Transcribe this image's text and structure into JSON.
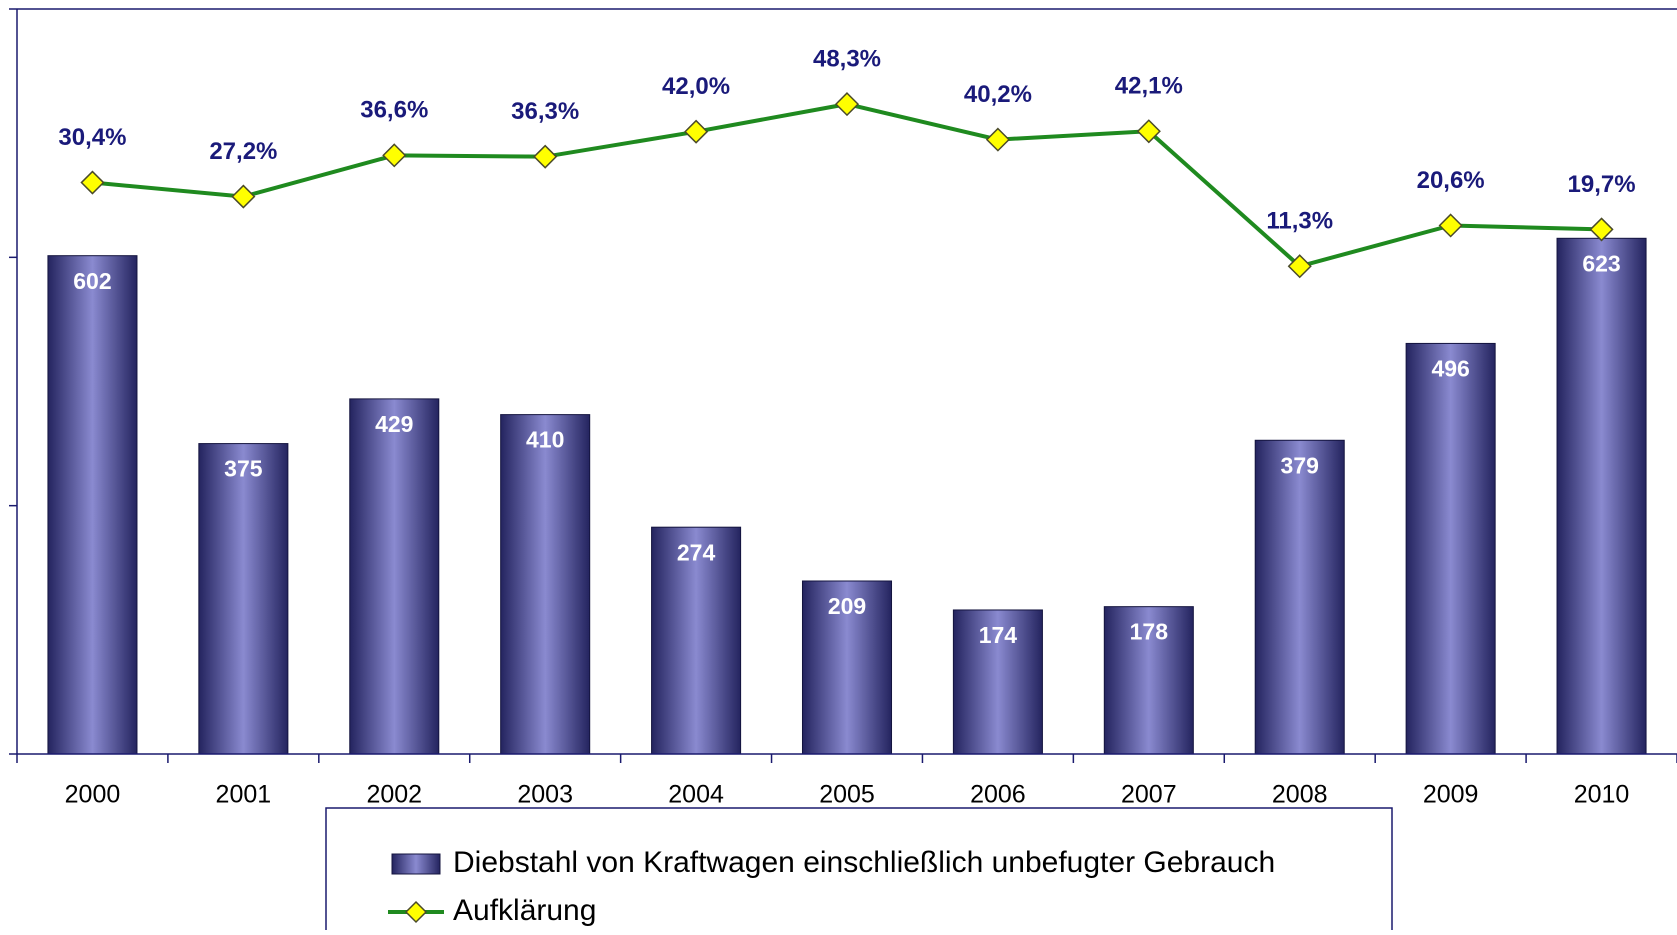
{
  "chart_data": {
    "type": "bar_line",
    "categories": [
      "2000",
      "2001",
      "2002",
      "2003",
      "2004",
      "2005",
      "2006",
      "2007",
      "2008",
      "2009",
      "2010"
    ],
    "ylim": [
      0,
      900
    ],
    "yticks": [
      0,
      300,
      600,
      900
    ],
    "y2lim": [
      -100,
      70
    ],
    "series": [
      {
        "name": "Diebstahl von Kraftwagen einschließlich unbefugter Gebrauch",
        "type": "bar",
        "color": "#4b4b99",
        "values": [
          602,
          375,
          429,
          410,
          274,
          209,
          174,
          178,
          379,
          496,
          623
        ]
      },
      {
        "name": "Aufklärung",
        "type": "line",
        "axis": "y2",
        "color": "#1f8a1f",
        "marker_color": "#ffff00",
        "values": [
          30.4,
          27.2,
          36.6,
          36.3,
          42.0,
          48.3,
          40.2,
          42.1,
          11.3,
          20.6,
          19.7
        ],
        "value_labels": [
          "30,4%",
          "27,2%",
          "36,6%",
          "36,3%",
          "42,0%",
          "48,3%",
          "40,2%",
          "42,1%",
          "11,3%",
          "20,6%",
          "19,7%"
        ]
      }
    ]
  }
}
